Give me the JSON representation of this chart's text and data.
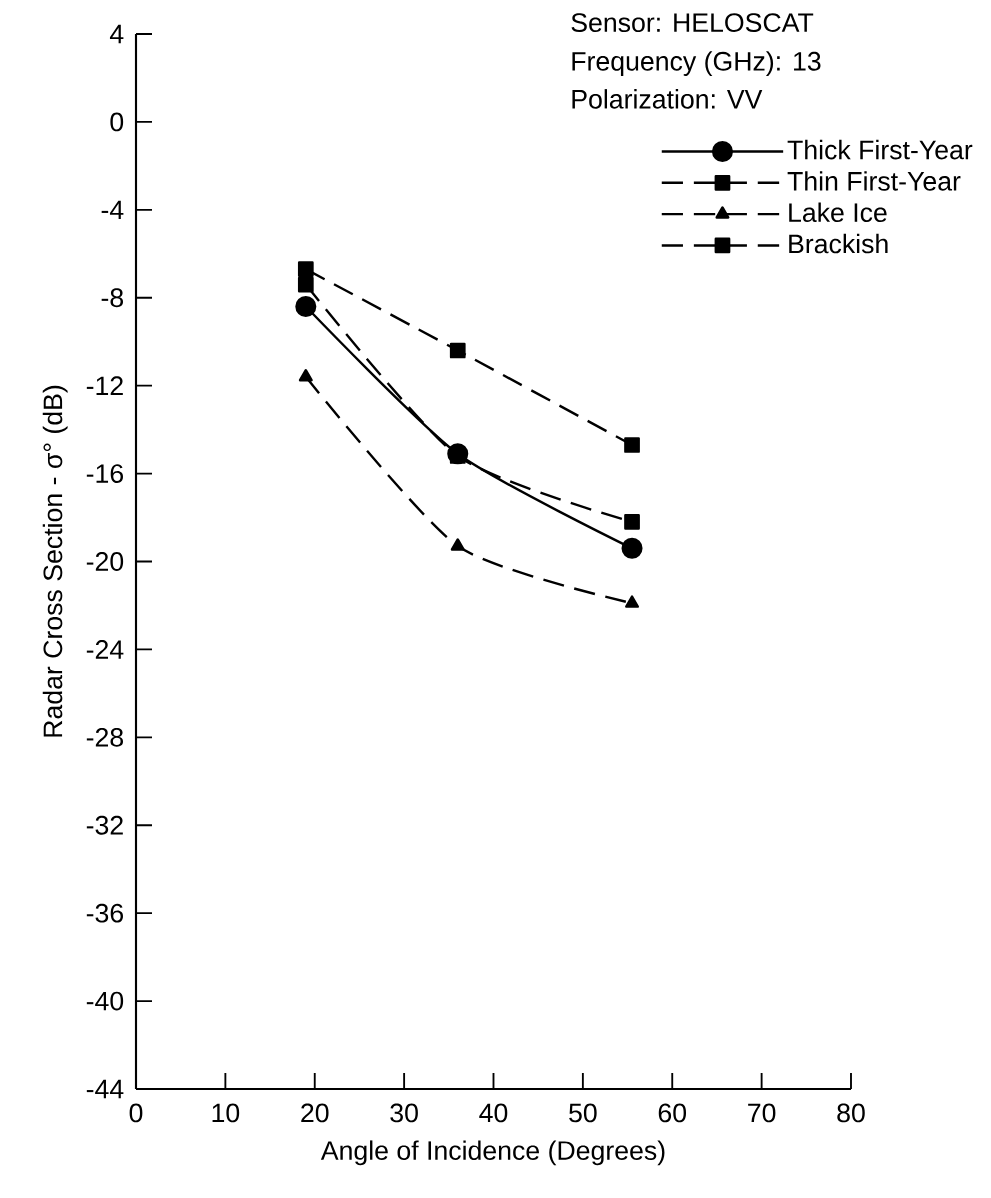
{
  "chart_data": {
    "type": "line",
    "xlabel": "Angle of Incidence (Degrees)",
    "ylabel": "Radar Cross Section - σ° (dB)",
    "x": [
      19,
      36,
      55.5
    ],
    "xlim": [
      0,
      80
    ],
    "xticks": [
      0,
      10,
      20,
      30,
      40,
      50,
      60,
      70,
      80
    ],
    "ylim": [
      -44,
      4
    ],
    "yticks": [
      4,
      0,
      -4,
      -8,
      -12,
      -16,
      -20,
      -24,
      -28,
      -32,
      -36,
      -40,
      -44
    ],
    "legend": "top right",
    "annotations": [
      "Sensor:  HELOSCAT",
      "Frequency (GHz):  13",
      "Polarization:  VV"
    ],
    "series": [
      {
        "name": "Thick First-Year",
        "color": "#000000",
        "marker": "circle",
        "line_style": "solid",
        "values": [
          -8.4,
          -15.1,
          -19.4
        ]
      },
      {
        "name": "Thin First-Year",
        "color": "#000000",
        "marker": "square",
        "line_style": "dashed",
        "values": [
          -6.7,
          -10.4,
          -14.7
        ]
      },
      {
        "name": "Lake Ice",
        "color": "#000000",
        "marker": "triangle",
        "line_style": "dashed",
        "values": [
          -11.6,
          -19.3,
          -21.9
        ]
      },
      {
        "name": "Brackish",
        "color": "#000000",
        "marker": "square",
        "line_style": "dashed",
        "values": [
          -7.4,
          -15.2,
          -18.2
        ]
      }
    ]
  }
}
